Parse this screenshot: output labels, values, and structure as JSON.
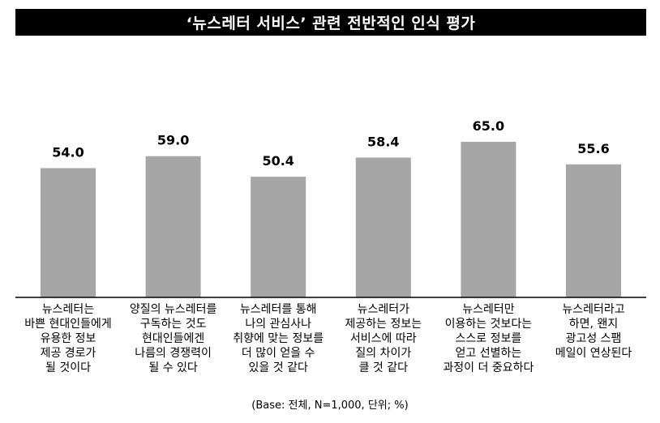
{
  "chart_data": {
    "type": "bar",
    "title": "‘뉴스레터 서비스’ 관련 전반적인 인식 평가",
    "categories": [
      "뉴스레터는\n바쁜 현대인들에게\n유용한 정보\n제공 경로가\n될 것이다",
      "양질의 뉴스레터를\n구독하는 것도\n현대인들에겐\n나름의 경쟁력이\n될 수 있다",
      "뉴스레터를 통해\n나의 관심사나\n취향에 맞는 정보를\n더 많이 얻을 수\n있을 것 같다",
      "뉴스레터가\n제공하는 정보는\n서비스에 따라\n질의 차이가\n클 것 같다",
      "뉴스레터만\n이용하는 것보다는\n스스로 정보를\n얻고 선별하는\n과정이 더 중요하다",
      "뉴스레터라고\n하면, 왠지\n광고성 스팸\n메일이 연상된다"
    ],
    "values": [
      54.0,
      59.0,
      50.4,
      58.4,
      65.0,
      55.6
    ],
    "value_labels": [
      "54.0",
      "59.0",
      "50.4",
      "58.4",
      "65.0",
      "55.6"
    ],
    "bar_color": "#a6a6a6",
    "xlabel": "",
    "ylabel": "",
    "note": "(Base: 전체, N=1,000, 단위; %)"
  }
}
